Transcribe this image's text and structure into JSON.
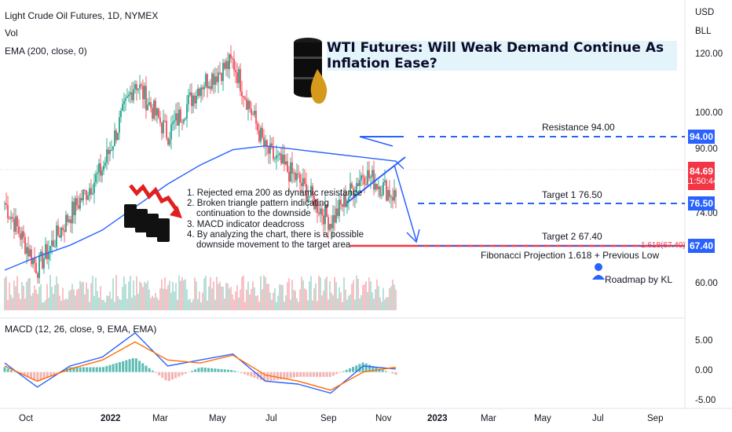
{
  "header": {
    "symbol": "Light Crude Oil Futures, 1D, NYMEX",
    "vol": "Vol",
    "ema": "EMA (200, close, 0)"
  },
  "title": "WTI Futures: Will Weak Demand Continue As Inflation Ease?",
  "notes": [
    "1. Rejected ema 200 as dynamic resistance",
    "2. Broken triangle pattern indicating",
    "continuation to the downside",
    "3. MACD indicator deadcross",
    "4. By analyzing the chart, there is a possible",
    "downside movement to the target area"
  ],
  "levels": {
    "resistance": "Resistance 94.00",
    "target1": "Target 1 76.50",
    "target2": "Target 2 67.40",
    "fib": "Fibonacci Projection 1.618 + Previous Low",
    "fib_tag": "1.618(67.40)",
    "roadmap": "Roadmap by KL"
  },
  "price_axis": {
    "currency": "USD",
    "unit": "BLL",
    "ticks": [
      "120.00",
      "100.00",
      "90.00",
      "74.00",
      "60.00"
    ],
    "badges": [
      {
        "label": "94.00",
        "value": 94.0,
        "color": "#2962ff"
      },
      {
        "label": "84.69",
        "sub": "11:50:44",
        "value": 84.69,
        "color": "#f23645"
      },
      {
        "label": "76.50",
        "value": 76.5,
        "color": "#2962ff"
      },
      {
        "label": "67.40",
        "value": 67.4,
        "color": "#2962ff"
      }
    ]
  },
  "time_axis": [
    "Oct",
    "2022",
    "Mar",
    "May",
    "Jul",
    "Sep",
    "Nov",
    "2023",
    "Mar",
    "May",
    "Jul",
    "Sep"
  ],
  "macd": {
    "label": "MACD (12, 26, close, 9, EMA, EMA)",
    "ticks": [
      "5.00",
      "0.00",
      "-5.00"
    ]
  },
  "chart_data": {
    "type": "line",
    "title": "Light Crude Oil Futures, 1D, NYMEX",
    "x": [
      "2021-10",
      "2021-12",
      "2022-01",
      "2022-02",
      "2022-03",
      "2022-04",
      "2022-05",
      "2022-06",
      "2022-07",
      "2022-08",
      "2022-09",
      "2022-10",
      "2022-11"
    ],
    "series": [
      {
        "name": "Price",
        "values": [
          83.0,
          66.0,
          80.0,
          92.0,
          115.0,
          101.0,
          114.0,
          120.0,
          97.0,
          89.0,
          78.0,
          91.0,
          84.69
        ]
      },
      {
        "name": "EMA (200, close, 0)",
        "values": [
          65.5,
          69.0,
          72.0,
          76.0,
          82.0,
          88.0,
          93.0,
          97.0,
          98.0,
          97.0,
          96.0,
          95.0,
          94.0
        ]
      }
    ],
    "projection": [
      84.69,
      67.4
    ],
    "levels": {
      "resistance": 94.0,
      "target1": 76.5,
      "target2": 67.4,
      "last": 84.69
    },
    "macd": {
      "macd": [
        1.5,
        -2.5,
        1.0,
        2.5,
        6.5,
        1.0,
        2.0,
        3.0,
        -1.5,
        -2.0,
        -3.5,
        1.0,
        0.5
      ],
      "signal": [
        1.0,
        -1.5,
        0.5,
        2.0,
        5.0,
        2.0,
        1.5,
        2.8,
        -0.5,
        -1.5,
        -3.0,
        0.0,
        0.8
      ],
      "ylim": [
        -5,
        7
      ]
    },
    "ylim": [
      55,
      130
    ],
    "grid": false
  }
}
